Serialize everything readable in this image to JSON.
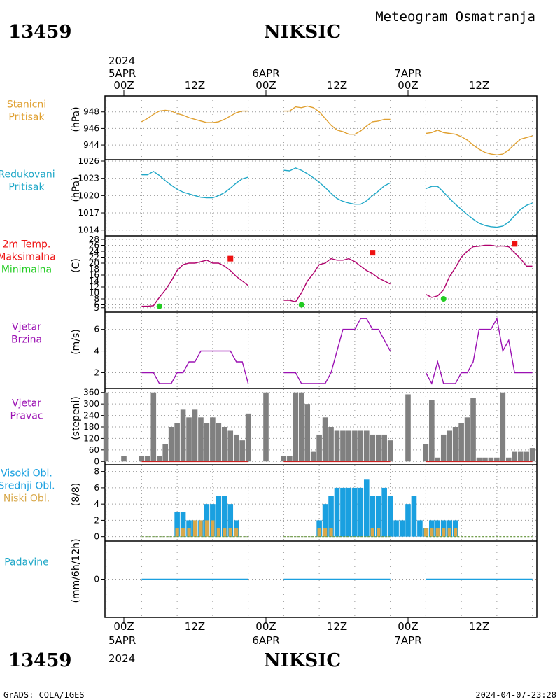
{
  "header": {
    "station_id": "13459",
    "station_name": "NIKSIC",
    "subtitle": "Meteogram Osmatranja"
  },
  "footer": {
    "credit": "GrADS: COLA/IGES",
    "timestamp": "2024-04-07-23:28"
  },
  "time_axis": {
    "top_year": "2024",
    "bottom_year": "2024",
    "ticks": [
      {
        "h": 0,
        "label": "00Z",
        "date": "5APR"
      },
      {
        "h": 12,
        "label": "12Z"
      },
      {
        "h": 24,
        "label": "00Z",
        "date": "6APR"
      },
      {
        "h": 36,
        "label": "12Z"
      },
      {
        "h": 48,
        "label": "00Z",
        "date": "7APR"
      },
      {
        "h": 60,
        "label": "12Z"
      }
    ]
  },
  "colors": {
    "pressure_station": "#e0a030",
    "pressure_reduced": "#20a8c8",
    "temperature": "#b0006c",
    "max_marker": "#ee1111",
    "min_marker": "#22cc22",
    "wind": "#9b11b3",
    "bars": "#808080",
    "high_cloud": "#1aa0e0",
    "low_cloud": "#d8a84a",
    "precip": "#1aa0e0",
    "grid": "#999999"
  },
  "chart_data": [
    {
      "type": "line",
      "label_lines": [
        "Stanicni",
        "Pritisak"
      ],
      "unit": "(hPa)",
      "yticks": [
        944,
        946,
        948
      ],
      "ylim": [
        942.4,
        949.5
      ],
      "x_unit": "hours since 5APR 00Z",
      "series": [
        {
          "color_key": "pressure_station",
          "x": [
            3,
            4,
            5,
            6,
            7,
            8,
            9,
            10,
            11,
            12,
            13,
            14,
            15,
            16,
            17,
            18,
            19,
            20,
            21,
            null,
            27,
            28,
            29,
            30,
            31,
            32,
            33,
            34,
            35,
            36,
            37,
            38,
            39,
            40,
            41,
            42,
            43,
            44,
            45,
            null,
            51,
            52,
            53,
            54,
            55,
            56,
            57,
            58,
            59,
            60,
            61,
            62,
            63,
            64,
            65,
            66,
            67,
            68,
            69
          ],
          "y": [
            946.8,
            947.2,
            947.7,
            948.1,
            948.2,
            948.1,
            947.8,
            947.6,
            947.3,
            947.1,
            946.9,
            946.7,
            946.7,
            946.8,
            947.1,
            947.5,
            947.9,
            948.1,
            948.1,
            null,
            948.1,
            948.1,
            948.6,
            948.5,
            948.7,
            948.5,
            948.0,
            947.2,
            946.4,
            945.8,
            945.6,
            945.3,
            945.3,
            945.7,
            946.3,
            946.8,
            946.9,
            947.1,
            947.1,
            null,
            945.4,
            945.5,
            945.8,
            945.5,
            945.4,
            945.3,
            945.0,
            944.6,
            944.0,
            943.5,
            943.1,
            942.9,
            942.8,
            942.9,
            943.4,
            944.1,
            944.7,
            944.9,
            945.1
          ]
        }
      ]
    },
    {
      "type": "line",
      "label_lines": [
        "Redukovani",
        "Pritisak"
      ],
      "unit": "(hPa)",
      "yticks": [
        1014,
        1017,
        1020,
        1023,
        1026
      ],
      "ylim": [
        1013.6,
        1026.0
      ],
      "x_unit": "hours since 5APR 00Z",
      "series": [
        {
          "color_key": "pressure_reduced",
          "x": [
            3,
            4,
            5,
            6,
            7,
            8,
            9,
            10,
            11,
            12,
            13,
            14,
            15,
            16,
            17,
            18,
            19,
            20,
            21,
            null,
            27,
            28,
            29,
            30,
            31,
            32,
            33,
            34,
            35,
            36,
            37,
            38,
            39,
            40,
            41,
            42,
            43,
            44,
            45,
            null,
            51,
            52,
            53,
            54,
            55,
            56,
            57,
            58,
            59,
            60,
            61,
            62,
            63,
            64,
            65,
            66,
            67,
            68,
            69
          ],
          "y": [
            1023.6,
            1023.6,
            1024.2,
            1023.5,
            1022.6,
            1021.8,
            1021.1,
            1020.6,
            1020.3,
            1020.0,
            1019.7,
            1019.6,
            1019.6,
            1020.0,
            1020.5,
            1021.3,
            1022.2,
            1022.9,
            1023.2,
            null,
            1024.4,
            1024.3,
            1024.8,
            1024.4,
            1023.8,
            1023.1,
            1022.3,
            1021.4,
            1020.4,
            1019.5,
            1019.0,
            1018.7,
            1018.5,
            1018.5,
            1019.1,
            1020.0,
            1020.8,
            1021.7,
            1022.2,
            null,
            1021.2,
            1021.6,
            1021.6,
            1020.6,
            1019.5,
            1018.5,
            1017.6,
            1016.7,
            1015.9,
            1015.2,
            1014.8,
            1014.6,
            1014.5,
            1014.7,
            1015.4,
            1016.5,
            1017.6,
            1018.3,
            1018.7
          ]
        }
      ]
    },
    {
      "type": "line",
      "label_lines": [
        "2m Temp.",
        "Maksimalna",
        "Minimalna"
      ],
      "label_color_keys": [
        "max_marker",
        "max_marker",
        "min_marker"
      ],
      "unit": "(C)",
      "yticks": [
        5,
        6,
        8,
        10,
        12,
        14,
        16,
        18,
        20,
        22,
        24,
        26,
        28
      ],
      "ylim": [
        4.0,
        28.0
      ],
      "x_unit": "hours since 5APR 00Z",
      "series": [
        {
          "color_key": "temperature",
          "x": [
            3,
            4,
            5,
            6,
            7,
            8,
            9,
            10,
            11,
            12,
            13,
            14,
            15,
            16,
            17,
            18,
            19,
            20,
            21,
            null,
            27,
            28,
            29,
            30,
            31,
            32,
            33,
            34,
            35,
            36,
            37,
            38,
            39,
            40,
            41,
            42,
            43,
            44,
            45,
            null,
            51,
            52,
            53,
            54,
            55,
            56,
            57,
            58,
            59,
            60,
            61,
            62,
            63,
            64,
            65,
            66,
            67,
            68,
            69
          ],
          "y": [
            5.5,
            5.5,
            5.7,
            8.5,
            11.0,
            14.0,
            17.5,
            19.5,
            20.0,
            20.0,
            20.5,
            21.0,
            20.0,
            20.0,
            19.0,
            17.5,
            15.5,
            14.0,
            12.5,
            null,
            7.5,
            7.5,
            7.0,
            10.0,
            14.0,
            16.5,
            19.5,
            20.0,
            21.5,
            21.0,
            21.0,
            21.5,
            20.5,
            19.0,
            17.5,
            16.5,
            15.0,
            14.0,
            13.0,
            null,
            9.5,
            8.5,
            9.0,
            11.0,
            15.5,
            18.5,
            22.0,
            24.0,
            25.5,
            25.7,
            26.0,
            26.0,
            25.7,
            25.8,
            25.5,
            23.5,
            21.5,
            19.0,
            19.0
          ]
        }
      ],
      "max_points": [
        {
          "x": 18,
          "y": 21.5
        },
        {
          "x": 42,
          "y": 23.5
        },
        {
          "x": 66,
          "y": 26.5
        }
      ],
      "min_points": [
        {
          "x": 6,
          "y": 5.5
        },
        {
          "x": 30,
          "y": 6.0
        },
        {
          "x": 54,
          "y": 8.0
        }
      ]
    },
    {
      "type": "line",
      "label_lines": [
        "Vjetar",
        "Brzina"
      ],
      "unit": "(m/s)",
      "yticks": [
        2,
        4,
        6
      ],
      "ylim": [
        0.8,
        7.4
      ],
      "x_unit": "hours since 5APR 00Z",
      "series": [
        {
          "color_key": "wind",
          "x": [
            3,
            4,
            5,
            6,
            7,
            8,
            9,
            10,
            11,
            12,
            13,
            14,
            15,
            16,
            17,
            18,
            19,
            20,
            21,
            null,
            27,
            28,
            29,
            30,
            31,
            32,
            33,
            34,
            35,
            36,
            37,
            38,
            39,
            40,
            41,
            42,
            43,
            44,
            45,
            null,
            51,
            52,
            53,
            54,
            55,
            56,
            57,
            58,
            59,
            60,
            61,
            62,
            63,
            64,
            65,
            66,
            67,
            68,
            69
          ],
          "y": [
            2,
            2,
            2,
            1,
            1,
            1,
            2,
            2,
            3,
            3,
            4,
            4,
            4,
            4,
            4,
            4,
            3,
            3,
            1,
            null,
            2,
            2,
            2,
            1,
            1,
            1,
            1,
            1,
            2,
            4,
            6,
            6,
            6,
            7,
            7,
            6,
            6,
            5,
            4,
            null,
            2,
            1,
            3,
            1,
            1,
            1,
            2,
            2,
            3,
            6,
            6,
            6,
            7,
            4,
            5,
            2,
            2,
            2,
            2
          ]
        }
      ]
    },
    {
      "type": "bar",
      "label_lines": [
        "Vjetar",
        "Pravac"
      ],
      "unit": "(stepeni)",
      "yticks": [
        0,
        60,
        120,
        180,
        240,
        300,
        360
      ],
      "ylim": [
        -10,
        370
      ],
      "x_unit": "hours since 5APR 00Z",
      "x": [
        -3,
        0,
        3,
        4,
        5,
        6,
        7,
        8,
        9,
        10,
        11,
        12,
        13,
        14,
        15,
        16,
        17,
        18,
        19,
        20,
        21,
        24,
        27,
        28,
        29,
        30,
        31,
        32,
        33,
        34,
        35,
        36,
        37,
        38,
        39,
        40,
        41,
        42,
        43,
        44,
        45,
        48,
        51,
        52,
        53,
        54,
        55,
        56,
        57,
        58,
        59,
        60,
        61,
        62,
        63,
        64,
        65,
        66,
        67,
        68,
        69
      ],
      "values": [
        360,
        30,
        30,
        30,
        360,
        30,
        90,
        180,
        200,
        270,
        230,
        270,
        230,
        200,
        230,
        200,
        180,
        160,
        140,
        110,
        250,
        360,
        30,
        30,
        360,
        360,
        300,
        50,
        140,
        230,
        180,
        160,
        160,
        160,
        160,
        160,
        160,
        140,
        140,
        140,
        110,
        350,
        90,
        320,
        20,
        140,
        160,
        180,
        200,
        230,
        330,
        20,
        20,
        20,
        20,
        360,
        20,
        50,
        50,
        50,
        70
      ]
    },
    {
      "type": "bar",
      "label_lines": [
        "Visoki Obl.",
        "Srednji Obl.",
        "Niski Obl."
      ],
      "label_color_keys": [
        "high_cloud",
        "high_cloud",
        "low_cloud"
      ],
      "unit": "(8/8)",
      "yticks": [
        0,
        2,
        4,
        6,
        8
      ],
      "ylim": [
        -0.2,
        8.4
      ],
      "x_unit": "hours since 5APR 00Z",
      "x": [
        9,
        10,
        11,
        12,
        13,
        14,
        15,
        16,
        17,
        18,
        19,
        33,
        34,
        35,
        36,
        37,
        38,
        39,
        40,
        41,
        42,
        43,
        44,
        45,
        46,
        47,
        48,
        49,
        50,
        51,
        52,
        53,
        54,
        55,
        56,
        66,
        67,
        68,
        69,
        70,
        71
      ],
      "series": [
        {
          "name": "Visoki Obl.",
          "color_key": "high_cloud",
          "values": [
            3,
            3,
            2,
            2,
            2,
            4,
            4,
            5,
            5,
            4,
            2,
            2,
            4,
            5,
            6,
            6,
            6,
            6,
            6,
            7,
            5,
            5,
            6,
            5,
            2,
            2,
            4,
            5,
            2,
            1,
            2,
            2,
            2,
            2,
            2,
            0,
            0,
            0,
            0,
            0,
            0
          ]
        },
        {
          "name": "Niski Obl.",
          "color_key": "low_cloud",
          "values": [
            1,
            1,
            1,
            2,
            2,
            2,
            2,
            1,
            1,
            1,
            1,
            1,
            1,
            1,
            0,
            0,
            0,
            0,
            0,
            0,
            1,
            1,
            0,
            0,
            0,
            0,
            0,
            0,
            0,
            1,
            1,
            1,
            1,
            1,
            1,
            0,
            0,
            0,
            0,
            0,
            0
          ]
        }
      ]
    },
    {
      "type": "line",
      "label_lines": [
        "Padavine"
      ],
      "unit": "(mm/6h/12h)",
      "yticks": [
        0
      ],
      "ylim": [
        -4.5,
        4.5
      ],
      "x_unit": "hours since 5APR 00Z",
      "series": [
        {
          "color_key": "precip",
          "x": [
            3,
            21,
            null,
            27,
            45,
            null,
            51,
            69
          ],
          "y": [
            0,
            0,
            null,
            0,
            0,
            null,
            0,
            0
          ]
        }
      ]
    }
  ]
}
